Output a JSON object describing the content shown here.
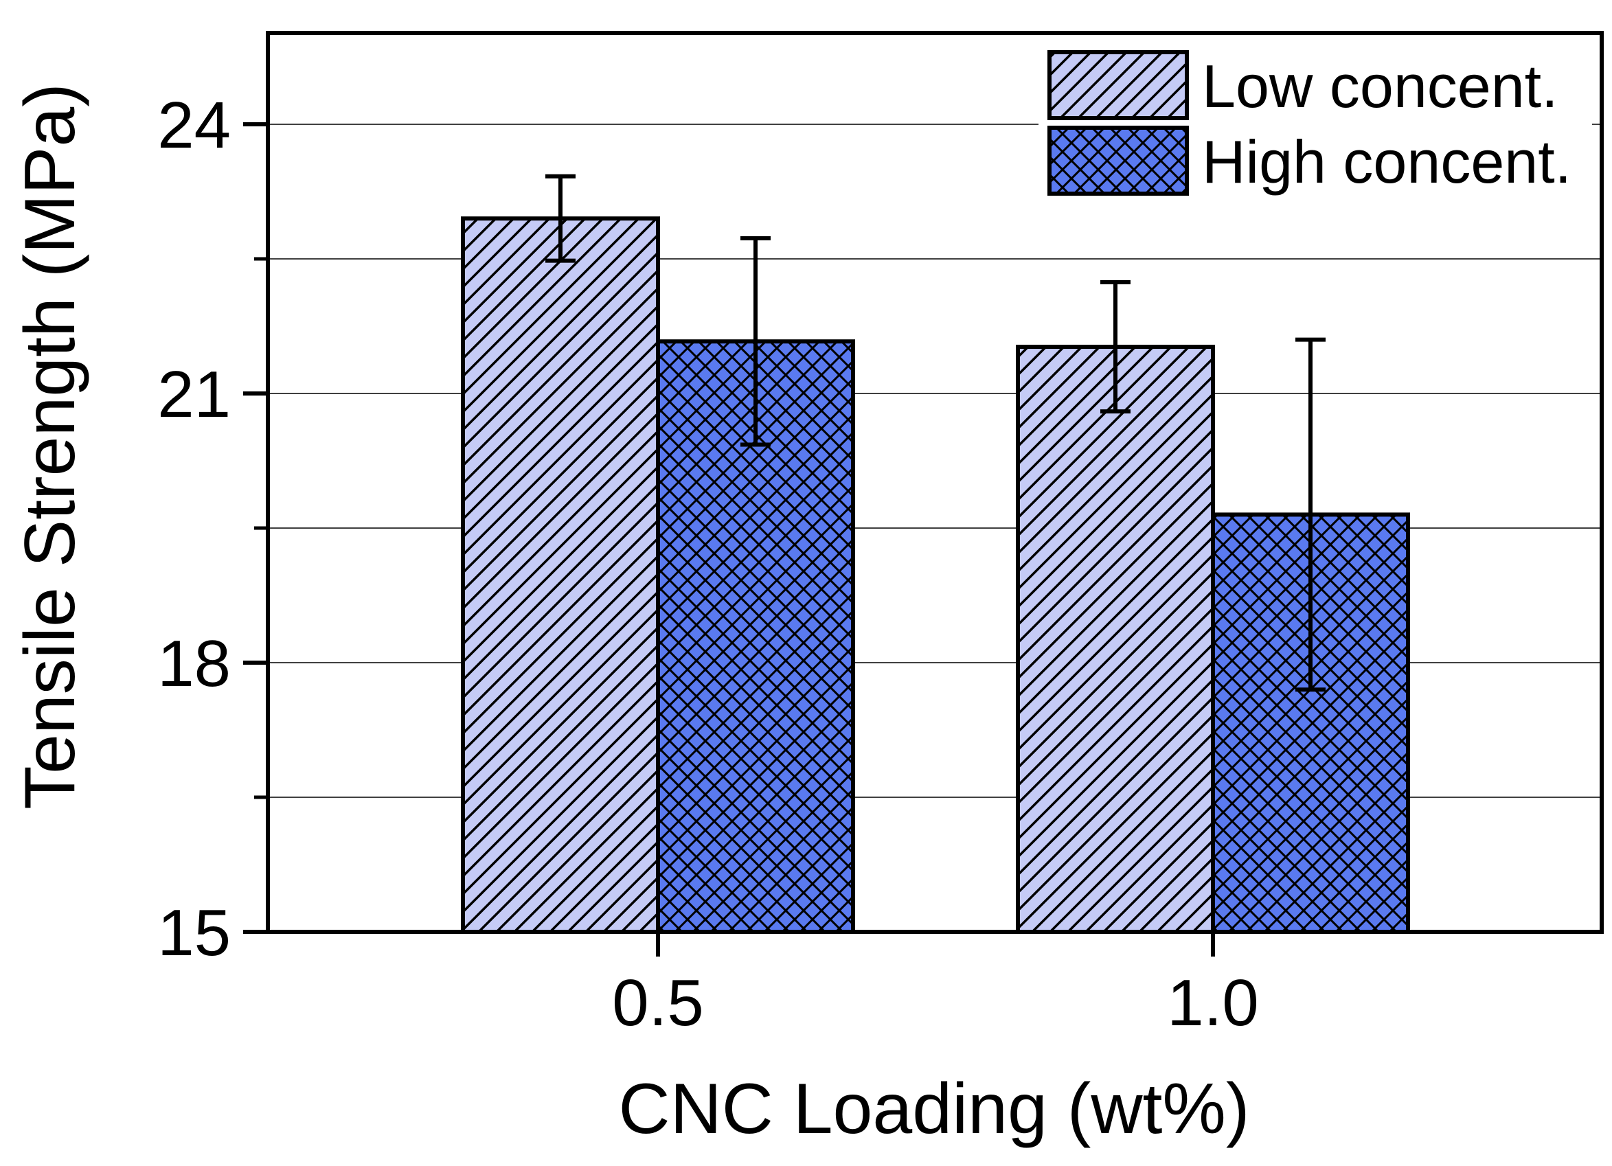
{
  "chart_data": {
    "type": "bar",
    "title": "",
    "xlabel": "CNC Loading (wt%)",
    "ylabel": "Tensile Strength (MPa)",
    "categories": [
      "0.5",
      "1.0"
    ],
    "ylim": [
      15,
      25
    ],
    "yticks_major": [
      15,
      18,
      21,
      24
    ],
    "yticks_minor": [
      16.5,
      19.5,
      22.5
    ],
    "grid": true,
    "legend_position": "top-right",
    "series": [
      {
        "name": "Low concent.",
        "values": [
          22.95,
          21.52
        ],
        "errors": [
          0.47,
          0.72
        ],
        "color": "#c5cbf6",
        "pattern": "diagonal-hatch"
      },
      {
        "name": "High concent.",
        "values": [
          21.58,
          19.65
        ],
        "errors": [
          1.15,
          1.95
        ],
        "color": "#5a7af0",
        "pattern": "cross-hatch"
      }
    ]
  }
}
